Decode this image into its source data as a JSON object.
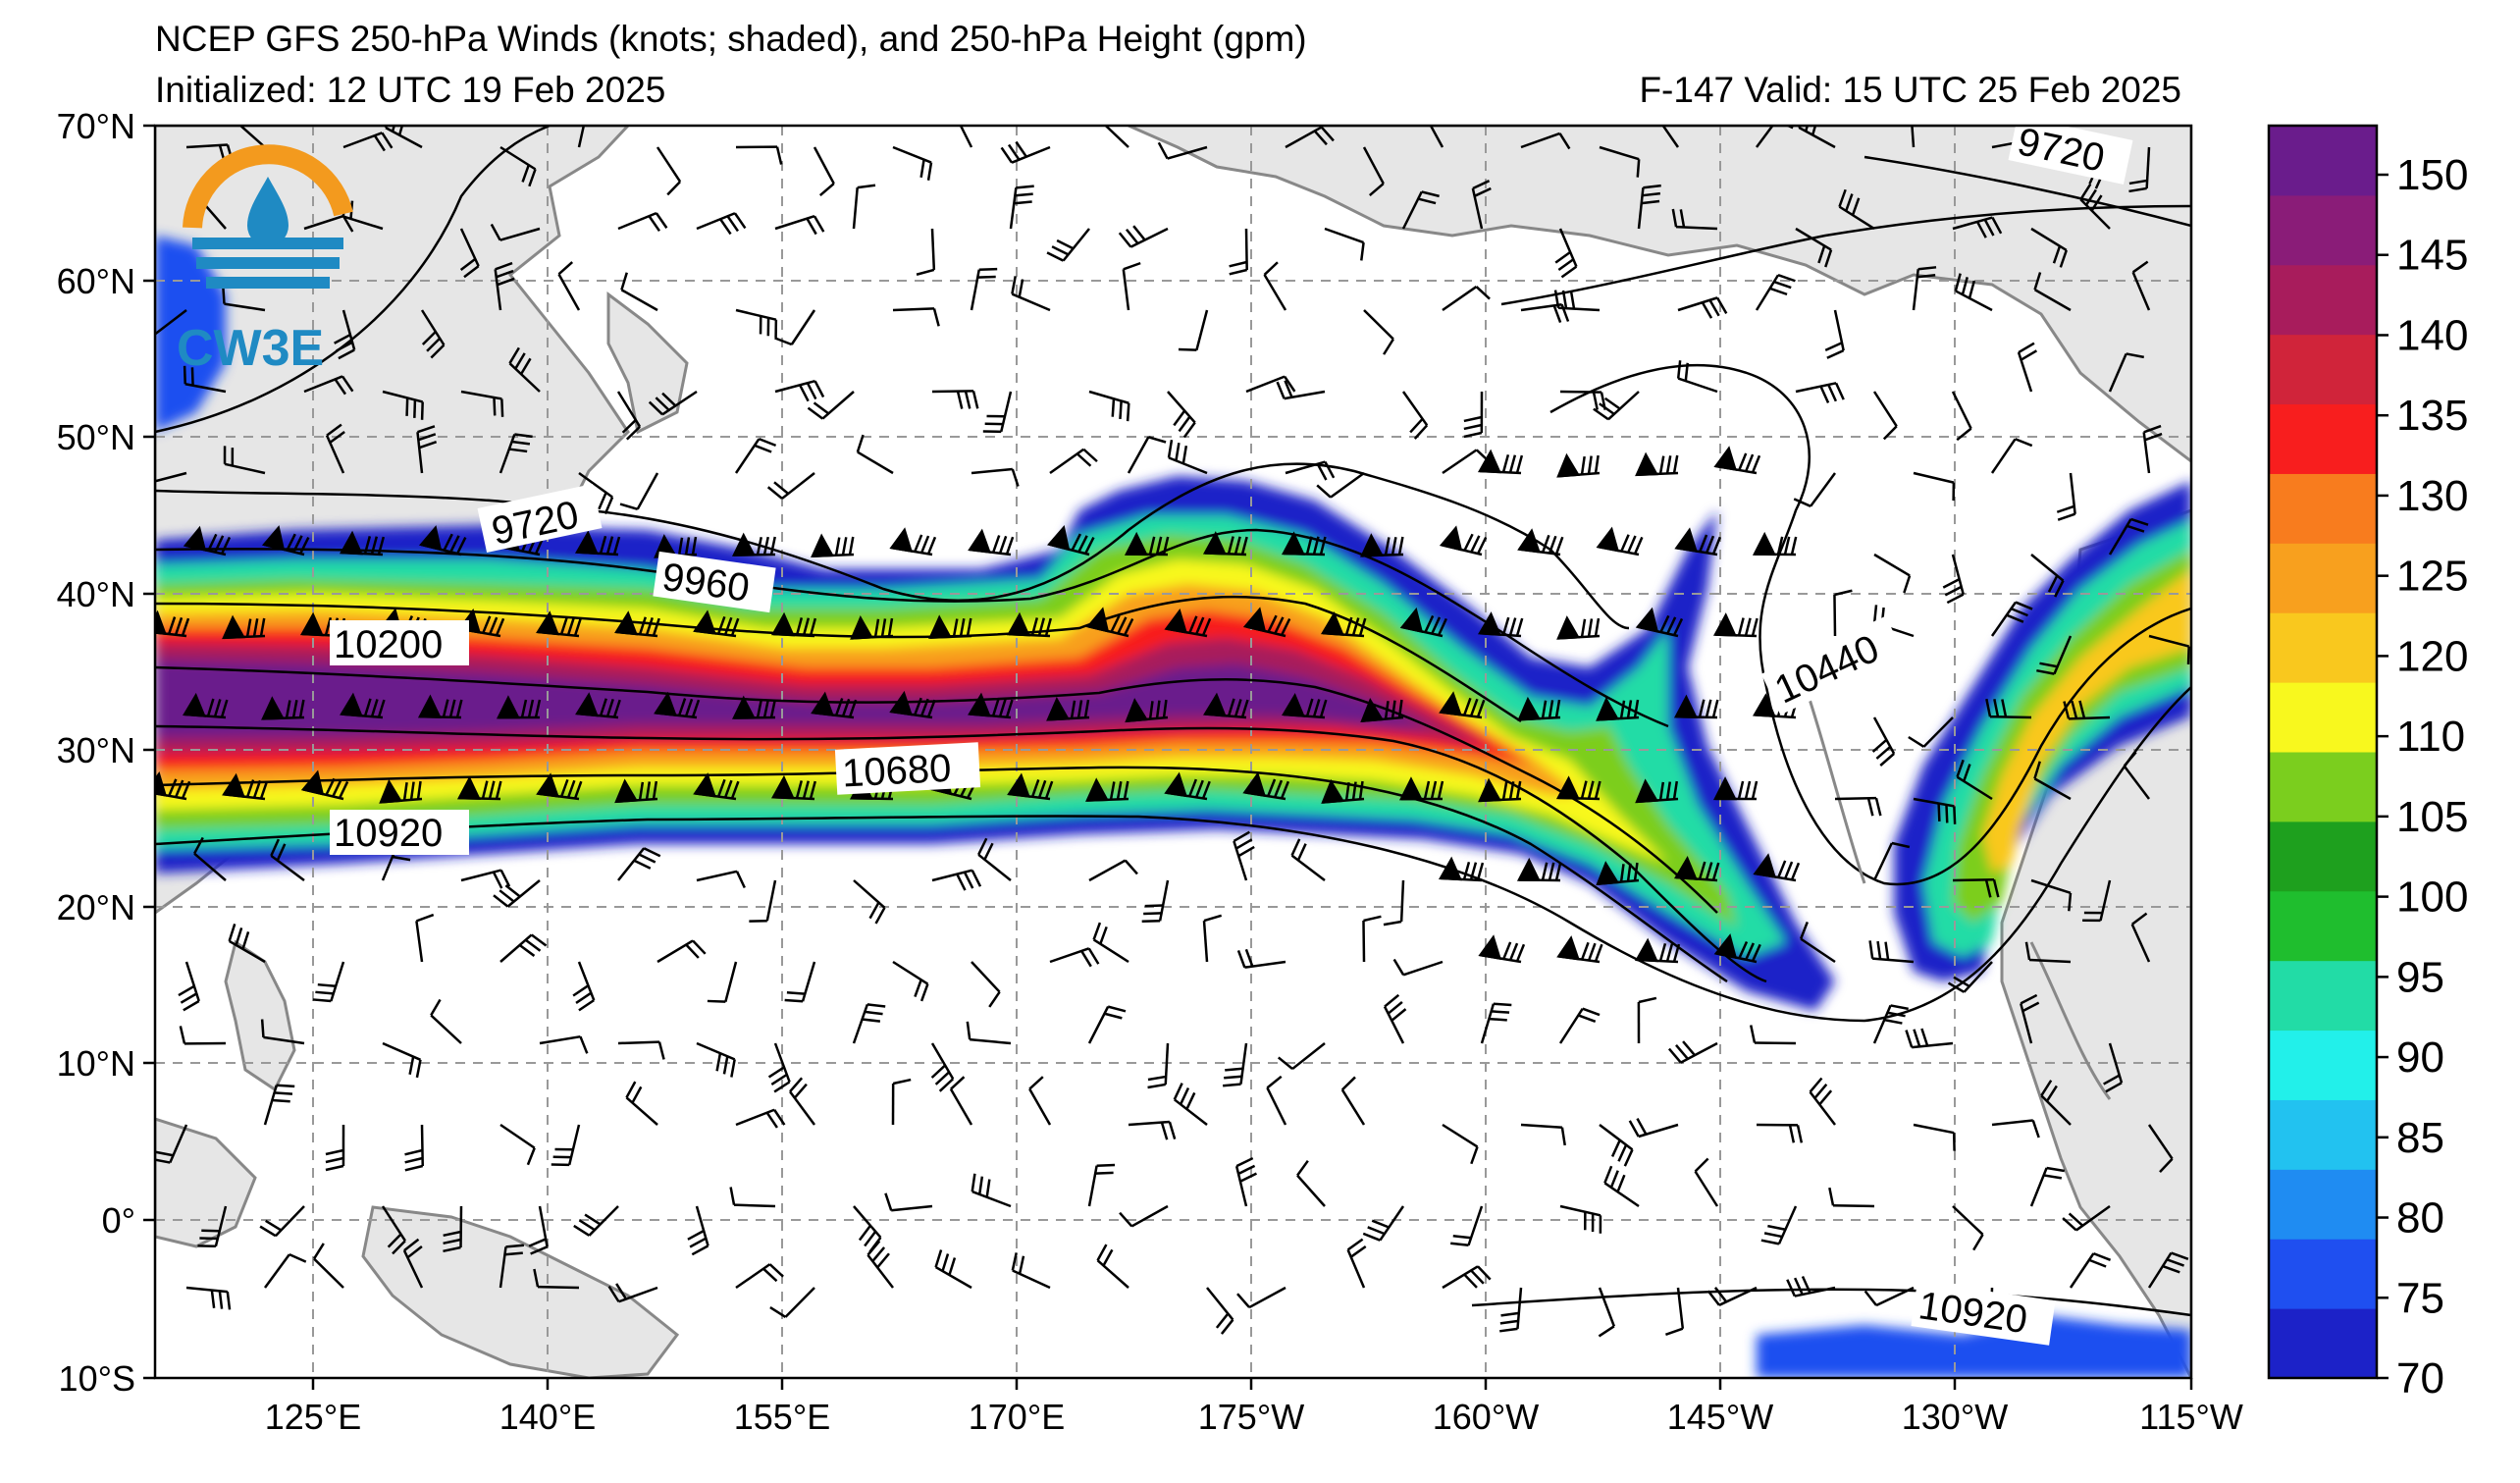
{
  "header": {
    "title": "NCEP GFS 250-hPa Winds (knots; shaded), and 250-hPa Height (gpm)",
    "initialized": "Initialized: 12 UTC 19 Feb 2025",
    "valid": "F-147  Valid: 15 UTC 25 Feb 2025"
  },
  "logo": {
    "text": "CW3E",
    "ring_color": "#f39a1e",
    "drop_color": "#1f8ac3"
  },
  "map": {
    "lat_labels": [
      "70°N",
      "60°N",
      "50°N",
      "40°N",
      "30°N",
      "20°N",
      "10°N",
      "0°",
      "10°S"
    ],
    "lon_labels": [
      "125°E",
      "140°E",
      "155°E",
      "170°E",
      "175°W",
      "160°W",
      "145°W",
      "130°W",
      "115°W"
    ],
    "land_color": "#e6e6e6",
    "height_contour_labels": [
      "9720",
      "9960",
      "10200",
      "10680",
      "10920",
      "10440",
      "9720",
      "10920"
    ]
  },
  "colorbar": {
    "ticks": [
      "70",
      "75",
      "80",
      "85",
      "90",
      "95",
      "100",
      "105",
      "110",
      "120",
      "125",
      "130",
      "135",
      "140",
      "145",
      "150"
    ],
    "colors": [
      "#1c22c8",
      "#1f4ff0",
      "#1f8cf2",
      "#22c2f0",
      "#22f0ea",
      "#22dca6",
      "#1fbe2e",
      "#1ea01e",
      "#7bce1e",
      "#f8f81e",
      "#f9c81e",
      "#f8a01e",
      "#f87c1e",
      "#f81e1e",
      "#d0243a",
      "#a81c5c",
      "#8a1c78",
      "#6a1c8c"
    ]
  }
}
